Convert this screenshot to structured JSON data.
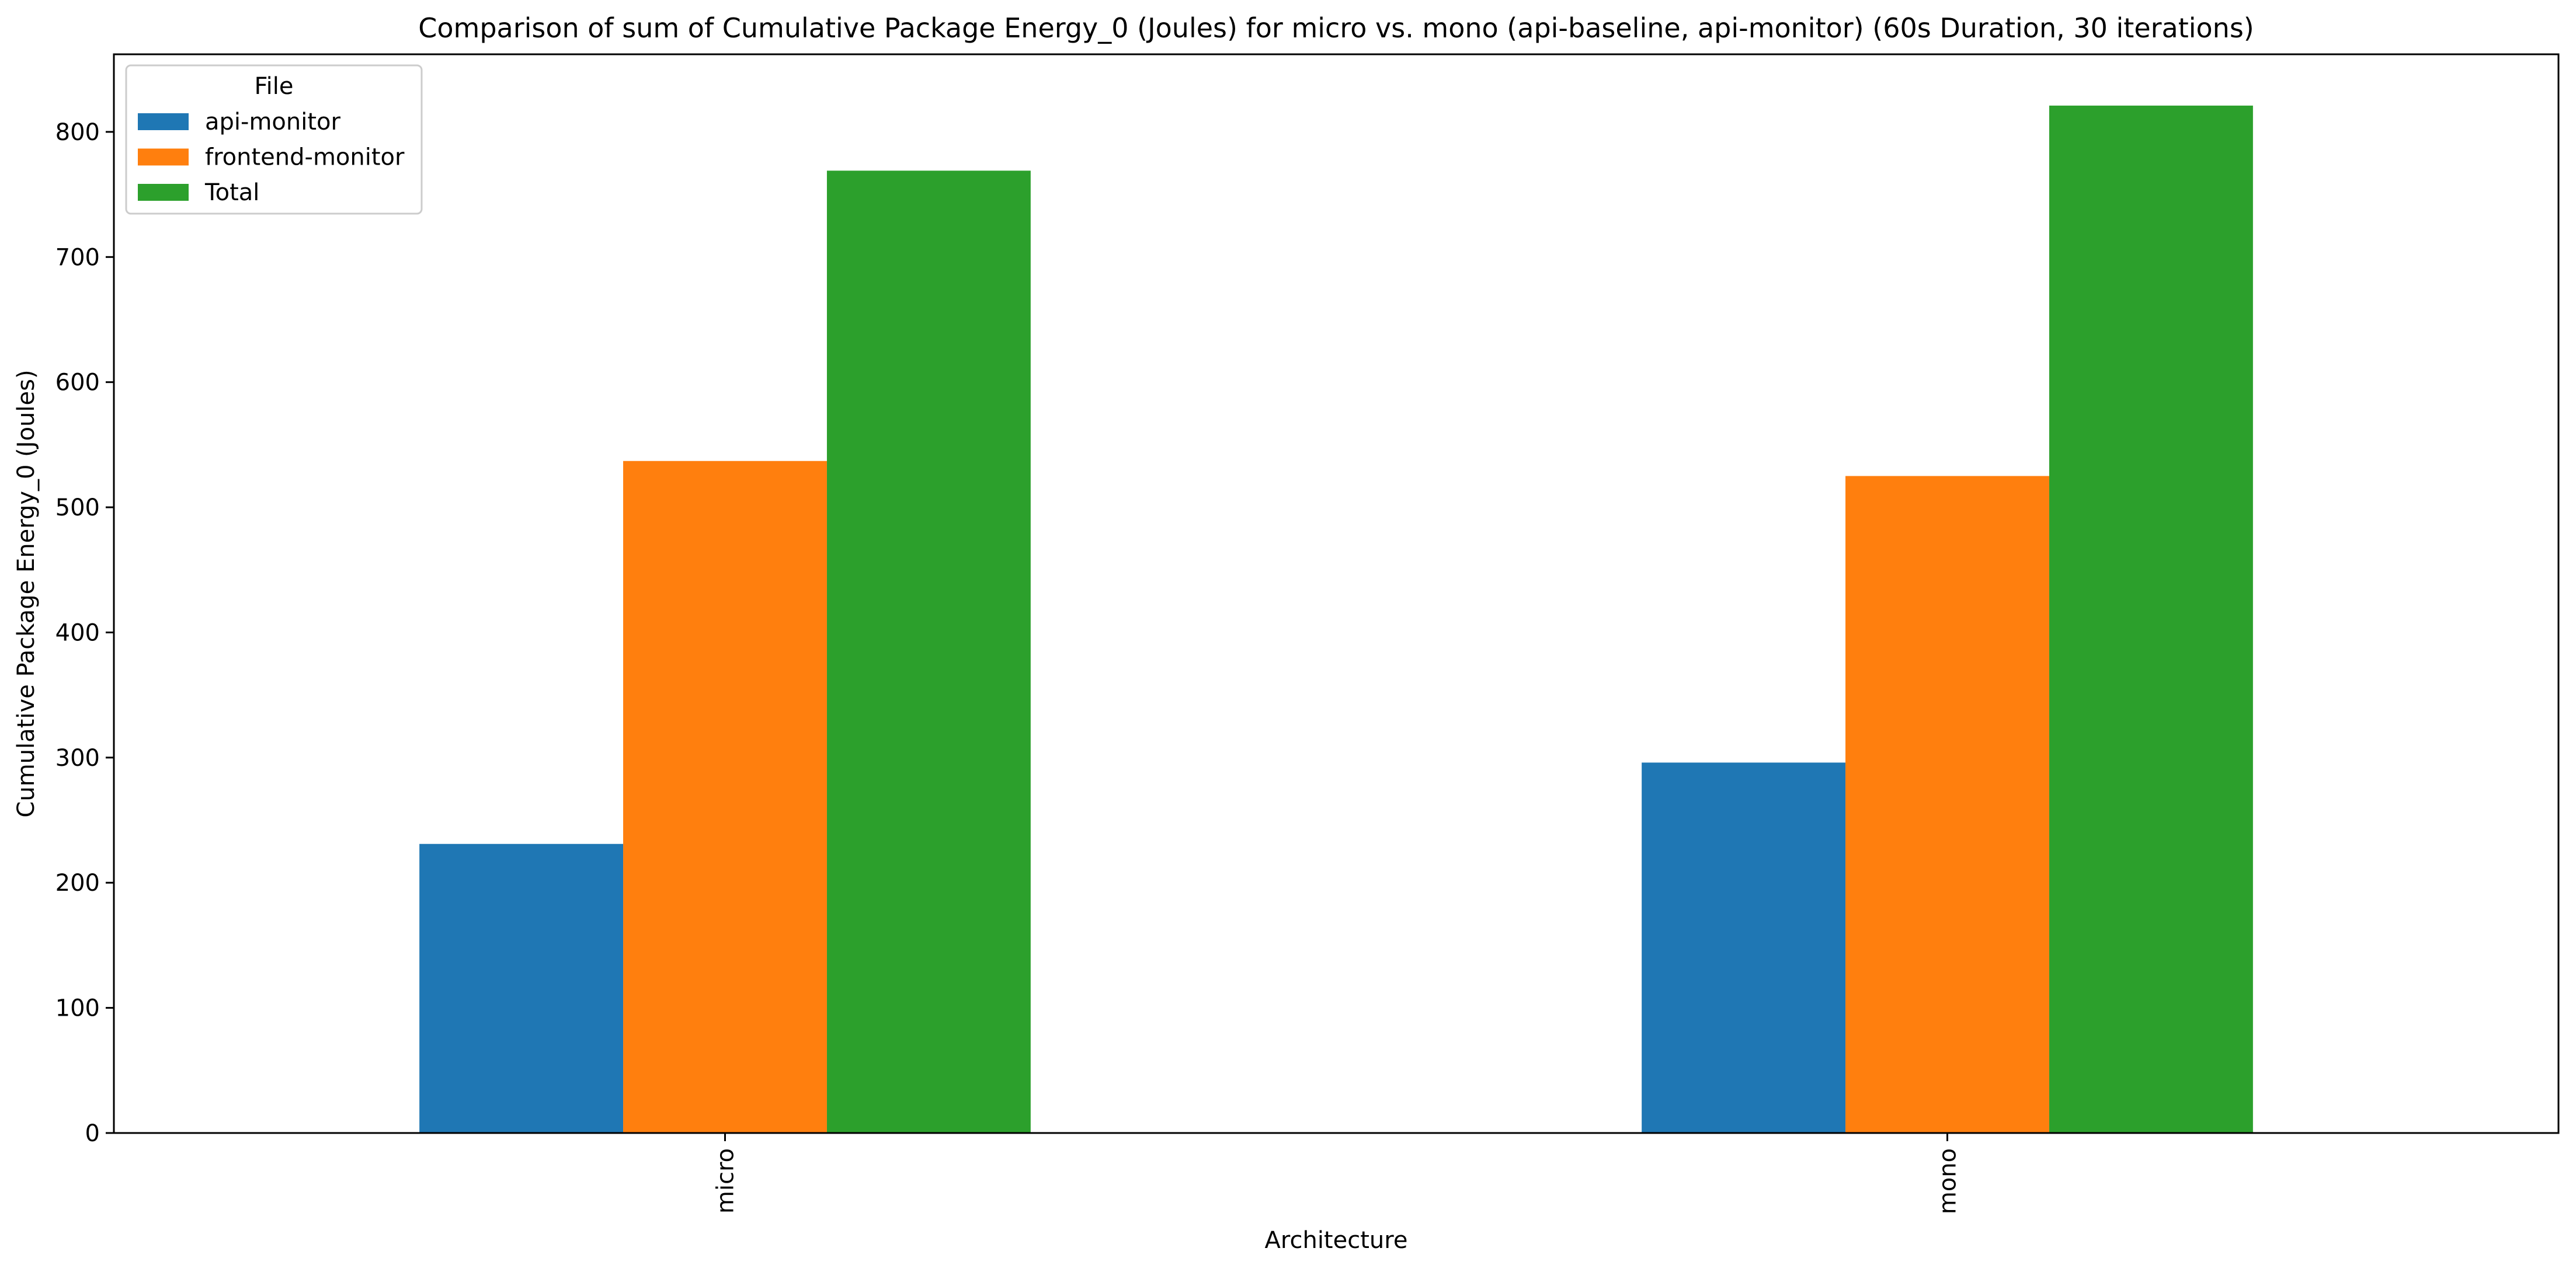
{
  "chart_data": {
    "type": "bar",
    "title": "Comparison of sum of Cumulative Package Energy_0 (Joules) for micro vs. mono (api-baseline, api-monitor) (60s Duration, 30 iterations)",
    "xlabel": "Architecture",
    "ylabel": "Cumulative Package Energy_0 (Joules)",
    "categories": [
      "micro",
      "mono"
    ],
    "series": [
      {
        "name": "api-monitor",
        "values": [
          231,
          296
        ],
        "color": "#1f77b4"
      },
      {
        "name": "frontend-monitor",
        "values": [
          537,
          525
        ],
        "color": "#ff7f0e"
      },
      {
        "name": "Total",
        "values": [
          769,
          821
        ],
        "color": "#2ca02c"
      }
    ],
    "ylim": [
      0,
      862
    ],
    "yticks": [
      0,
      100,
      200,
      300,
      400,
      500,
      600,
      700,
      800
    ],
    "legend": {
      "title": "File",
      "placement": "top-left"
    },
    "grid": false
  }
}
